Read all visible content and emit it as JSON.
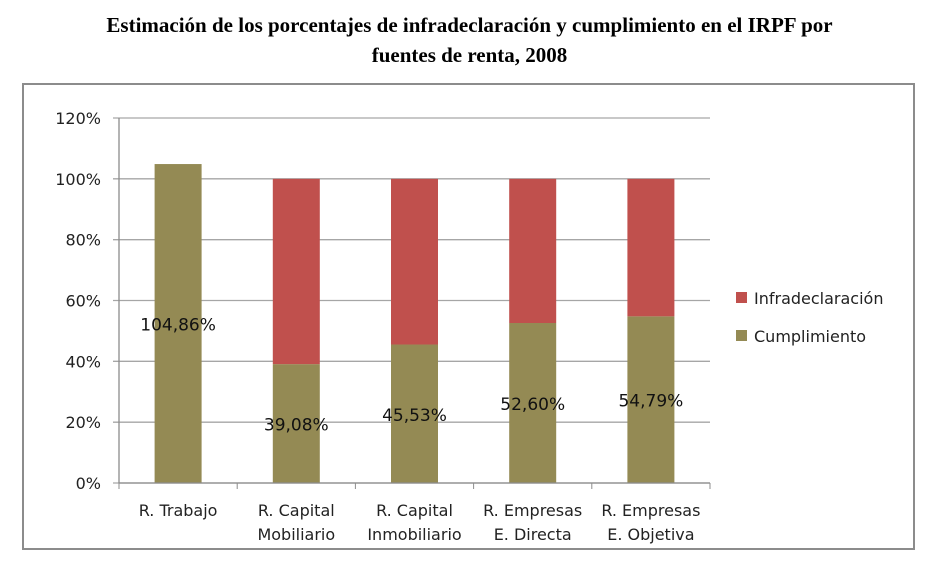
{
  "chart_data": {
    "type": "bar",
    "stacked": true,
    "title": "Estimación de los porcentajes de infradeclaración y cumplimiento en el IRPF por fuentes de renta, 2008",
    "title_lines": [
      "Estimación de los porcentajes de infradeclaración y cumplimiento en el IRPF por",
      "fuentes de renta, 2008"
    ],
    "categories": [
      [
        "R. Trabajo"
      ],
      [
        "R. Capital",
        "Mobiliario"
      ],
      [
        "R. Capital",
        "Inmobiliario"
      ],
      [
        "R. Empresas",
        "E. Directa"
      ],
      [
        "R. Empresas",
        "E. Objetiva"
      ]
    ],
    "series": [
      {
        "name": "Cumplimiento",
        "color": "#948A54",
        "values": [
          104.86,
          39.08,
          45.53,
          52.6,
          54.79
        ],
        "labels": [
          "104,86%",
          "39,08%",
          "45,53%",
          "52,60%",
          "54,79%"
        ]
      },
      {
        "name": "Infradeclaración",
        "color": "#C0504D",
        "values": [
          0,
          60.92,
          54.47,
          47.4,
          45.21
        ]
      }
    ],
    "legend_order": [
      "Infradeclaración",
      "Cumplimiento"
    ],
    "legend_position": "right",
    "ylim": [
      0,
      120
    ],
    "yticks": [
      0,
      20,
      40,
      60,
      80,
      100,
      120
    ],
    "ytick_labels": [
      "0%",
      "20%",
      "40%",
      "60%",
      "80%",
      "100%",
      "120%"
    ],
    "grid": true
  }
}
